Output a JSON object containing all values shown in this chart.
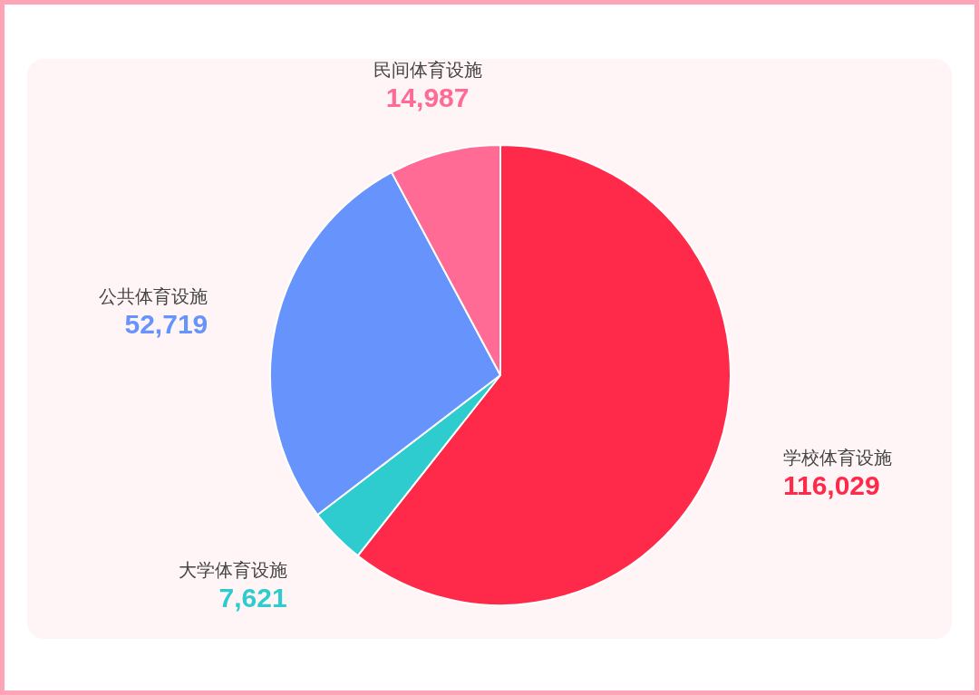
{
  "chart_data": {
    "type": "pie",
    "categories": [
      "学校体育设施",
      "大学体育设施",
      "公共体育设施",
      "民间体育设施"
    ],
    "values": [
      116029,
      7621,
      52719,
      14987
    ],
    "colors": [
      "#ff2a4a",
      "#2ecccf",
      "#6694fc",
      "#ff6b94"
    ],
    "value_labels": [
      "116,029",
      "7,621",
      "52,719",
      "14,987"
    ]
  }
}
